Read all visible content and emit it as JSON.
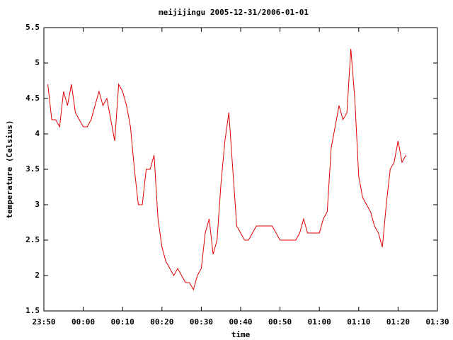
{
  "chart_data": {
    "type": "line",
    "title": "meijijingu 2005-12-31/2006-01-01",
    "x_label": "time",
    "y_label": "temperature (Celsius)",
    "x": [
      "23:51",
      "23:52",
      "23:53",
      "23:54",
      "23:55",
      "23:56",
      "23:57",
      "23:58",
      "23:59",
      "00:00",
      "00:01",
      "00:02",
      "00:03",
      "00:04",
      "00:05",
      "00:06",
      "00:07",
      "00:08",
      "00:09",
      "00:10",
      "00:11",
      "00:12",
      "00:13",
      "00:14",
      "00:15",
      "00:16",
      "00:17",
      "00:18",
      "00:19",
      "00:20",
      "00:21",
      "00:22",
      "00:23",
      "00:24",
      "00:25",
      "00:26",
      "00:27",
      "00:28",
      "00:29",
      "00:30",
      "00:31",
      "00:32",
      "00:33",
      "00:34",
      "00:35",
      "00:36",
      "00:37",
      "00:38",
      "00:39",
      "00:40",
      "00:41",
      "00:42",
      "00:43",
      "00:44",
      "00:45",
      "00:46",
      "00:47",
      "00:48",
      "00:49",
      "00:50",
      "00:51",
      "00:52",
      "00:53",
      "00:54",
      "00:55",
      "00:56",
      "00:57",
      "00:58",
      "00:59",
      "01:00",
      "01:01",
      "01:02",
      "01:03",
      "01:04",
      "01:05",
      "01:06",
      "01:07",
      "01:08",
      "01:09",
      "01:10",
      "01:11",
      "01:12",
      "01:13",
      "01:14",
      "01:15",
      "01:16",
      "01:17",
      "01:18",
      "01:19",
      "01:20",
      "01:21",
      "01:22"
    ],
    "series": [
      {
        "color": "#e00000",
        "values": [
          4.7,
          4.2,
          4.2,
          4.1,
          4.6,
          4.4,
          4.7,
          4.3,
          4.2,
          4.1,
          4.1,
          4.2,
          4.4,
          4.6,
          4.4,
          4.5,
          4.2,
          3.9,
          4.7,
          4.6,
          4.4,
          4.1,
          3.5,
          3.0,
          3.0,
          3.5,
          3.5,
          3.7,
          2.8,
          2.4,
          2.2,
          2.1,
          2.0,
          2.1,
          2.0,
          1.9,
          1.9,
          1.8,
          2.0,
          2.1,
          2.6,
          2.8,
          2.3,
          2.5,
          3.3,
          3.9,
          4.3,
          3.5,
          2.7,
          2.6,
          2.5,
          2.5,
          2.6,
          2.7,
          2.7,
          2.7,
          2.7,
          2.7,
          2.6,
          2.5,
          2.5,
          2.5,
          2.5,
          2.5,
          2.6,
          2.8,
          2.6,
          2.6,
          2.6,
          2.6,
          2.8,
          2.9,
          3.8,
          4.1,
          4.4,
          4.2,
          4.3,
          5.2,
          4.5,
          3.4,
          3.1,
          3.0,
          2.9,
          2.7,
          2.6,
          2.4,
          3.0,
          3.5,
          3.6,
          3.9,
          3.6,
          3.7
        ]
      }
    ],
    "xlim": [
      "23:50",
      "01:30"
    ],
    "xticks": [
      "23:50",
      "00:00",
      "00:10",
      "00:20",
      "00:30",
      "00:40",
      "00:50",
      "01:00",
      "01:10",
      "01:20",
      "01:30"
    ],
    "ylim": [
      1.5,
      5.5
    ],
    "yticks": [
      1.5,
      2,
      2.5,
      3,
      3.5,
      4,
      4.5,
      5,
      5.5
    ]
  }
}
